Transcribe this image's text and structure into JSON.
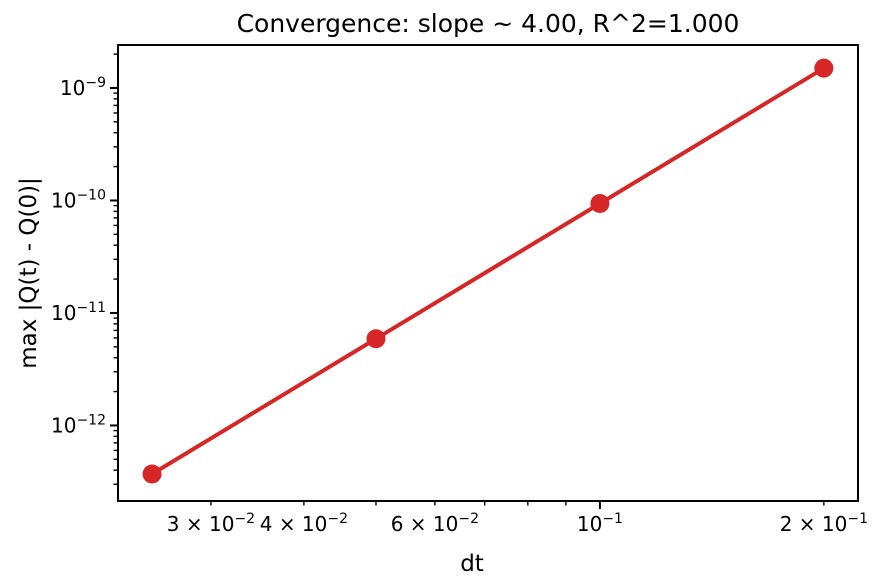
{
  "figure": {
    "background": "#ffffff",
    "text_color": "#000000",
    "axis_color": "#000000"
  },
  "chart_data": {
    "type": "line",
    "title": "Convergence: slope ~ 4.00, R^2=1.000",
    "xlabel": "dt",
    "ylabel": "max |Q(t) - Q(0)|",
    "xscale": "log",
    "yscale": "log",
    "x": [
      0.025,
      0.05,
      0.1,
      0.2
    ],
    "y": [
      3.7e-13,
      5.9e-12,
      9.4e-11,
      1.5e-09
    ],
    "slope": 4.0,
    "r_squared": 1.0,
    "xlim": [
      0.0225,
      0.2223
    ],
    "ylim": [
      2.13e-13,
      2.41e-09
    ],
    "line_color": "#d62728",
    "marker": "circle",
    "marker_color": "#d62728",
    "grid": false,
    "legend": "none",
    "x_ticks": [
      {
        "value": 0.03,
        "label": "3 × 10⁻²",
        "major": false
      },
      {
        "value": 0.04,
        "label": "4 × 10⁻²",
        "major": false
      },
      {
        "value": 0.06,
        "label": "6 × 10⁻²",
        "major": false
      },
      {
        "value": 0.1,
        "label": "10⁻¹",
        "major": true
      },
      {
        "value": 0.2,
        "label": "2 × 10⁻¹",
        "major": false
      }
    ],
    "x_minor_ticks": [
      0.03,
      0.04,
      0.05,
      0.06,
      0.07,
      0.08,
      0.09,
      0.2
    ],
    "y_ticks": [
      {
        "value": 1e-09,
        "label": "10⁻⁹",
        "major": true
      },
      {
        "value": 1e-10,
        "label": "10⁻¹⁰",
        "major": true
      },
      {
        "value": 1e-11,
        "label": "10⁻¹¹",
        "major": true
      },
      {
        "value": 1e-12,
        "label": "10⁻¹²",
        "major": true
      }
    ],
    "y_minor_ticks": [
      3e-13,
      4e-13,
      5e-13,
      6e-13,
      7e-13,
      8e-13,
      9e-13,
      2e-12,
      3e-12,
      4e-12,
      5e-12,
      6e-12,
      7e-12,
      8e-12,
      9e-12,
      2e-11,
      3e-11,
      4e-11,
      5e-11,
      6e-11,
      7e-11,
      8e-11,
      9e-11,
      2e-10,
      3e-10,
      4e-10,
      5e-10,
      6e-10,
      7e-10,
      8e-10,
      9e-10,
      2e-09
    ]
  }
}
